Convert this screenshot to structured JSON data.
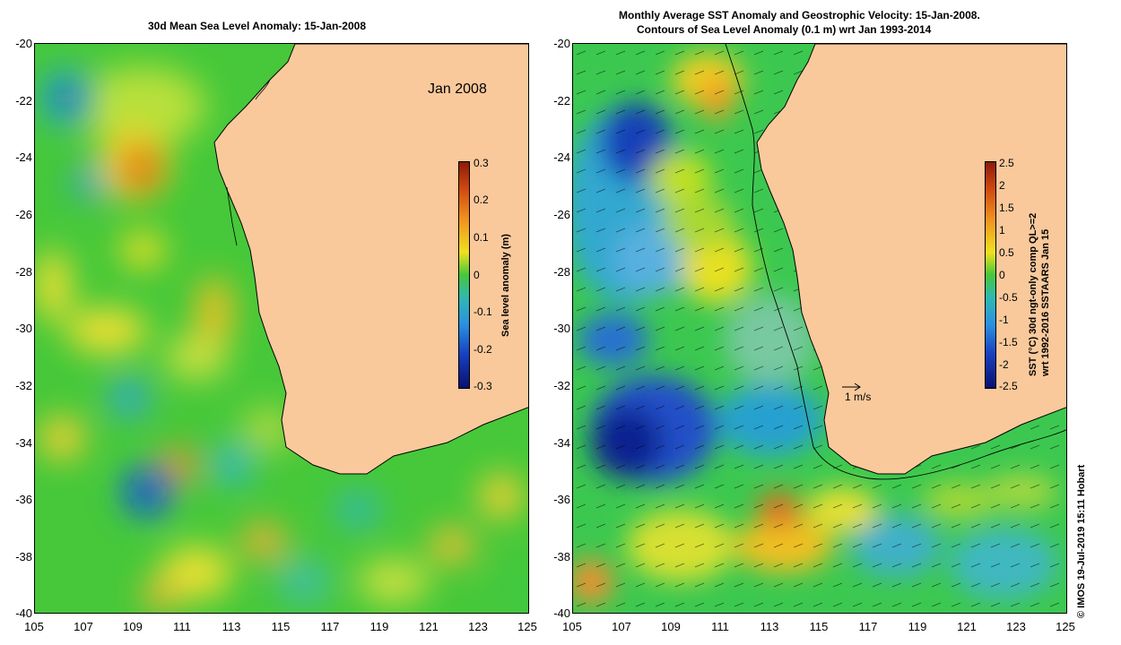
{
  "left_panel": {
    "title": "30d Mean Sea Level Anomaly: 15-Jan-2008",
    "inset_label": "Jan 2008",
    "colorbar": {
      "label": "Sea level anomaly (m)",
      "ticks": [
        "0.3",
        "0.2",
        "0.1",
        "0",
        "-0.1",
        "-0.2",
        "-0.3"
      ]
    }
  },
  "right_panel": {
    "title_line1": "Monthly Average SST Anomaly  and Geostrophic Velocity: 15-Jan-2008.",
    "title_line2": "Contours of Sea Level Anomaly (0.1 m) wrt Jan 1993-2014",
    "reference_vector": "1 m/s",
    "colorbar": {
      "label_line1": "SST (°C) 30d ngt-only comp QL>=2",
      "label_line2": "wrt 1992-2016 SSTAARS Jan 15",
      "ticks": [
        "2.5",
        "2",
        "1.5",
        "1",
        "0.5",
        "0",
        "-0.5",
        "-1",
        "-1.5",
        "-2",
        "-2.5"
      ]
    }
  },
  "axes": {
    "y_ticks": [
      "-20",
      "-22",
      "-24",
      "-26",
      "-28",
      "-30",
      "-32",
      "-34",
      "-36",
      "-38",
      "-40"
    ],
    "x_ticks": [
      "105",
      "107",
      "109",
      "111",
      "113",
      "115",
      "117",
      "119",
      "121",
      "123",
      "125"
    ]
  },
  "credit": "© IMOS 19-Jul-2019 15:11 Hobart",
  "colors": {
    "land": "#f9c99c",
    "ocean_base": "#3cc83c"
  }
}
